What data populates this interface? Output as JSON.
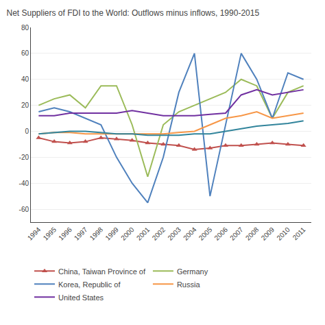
{
  "chart_data": {
    "type": "line",
    "title": "Net Suppliers of FDI to the World: Outflows minus inflows, 1990-2015",
    "x": [
      1994,
      1995,
      1996,
      1997,
      1998,
      1999,
      2000,
      2001,
      2002,
      2003,
      2004,
      2005,
      2006,
      2007,
      2008,
      2009,
      2010,
      2011
    ],
    "series": [
      {
        "name": "China, Taiwan Province of",
        "color": "#c0504d",
        "marker": "triangle-up",
        "values": [
          -5,
          -8,
          -9,
          -8,
          -5,
          -6,
          -7,
          -9,
          -10,
          -11,
          -14,
          -13,
          -11,
          -11,
          -10,
          -9,
          -10,
          -11
        ]
      },
      {
        "name": "Germany",
        "color": "#9bbb59",
        "values": [
          20,
          25,
          28,
          18,
          35,
          35,
          5,
          -35,
          5,
          15,
          20,
          25,
          30,
          40,
          35,
          10,
          30,
          35
        ]
      },
      {
        "name": "Korea, Republic of",
        "color": "#4f81bd",
        "values": [
          15,
          18,
          15,
          10,
          5,
          -20,
          -40,
          -55,
          -20,
          30,
          60,
          -50,
          5,
          60,
          40,
          10,
          45,
          40
        ]
      },
      {
        "name": "Russia",
        "color": "#f79646",
        "values": [
          -2,
          -1,
          -1,
          -2,
          -2,
          -2,
          -2,
          -2,
          -2,
          -1,
          0,
          5,
          10,
          12,
          15,
          10,
          12,
          14
        ]
      },
      {
        "name": "United States",
        "color": "#7030a0",
        "values": [
          12,
          12,
          14,
          14,
          14,
          14,
          16,
          14,
          12,
          12,
          12,
          13,
          14,
          28,
          32,
          28,
          30,
          32
        ]
      },
      {
        "color": "#31849b",
        "values": [
          -2,
          -1,
          0,
          0,
          -1,
          -2,
          -2,
          -3,
          -3,
          -3,
          -2,
          -2,
          0,
          2,
          4,
          5,
          6,
          8
        ]
      }
    ],
    "xlim": [
      1993.5,
      2011.5
    ],
    "xticks": [
      1994,
      1995,
      1996,
      1997,
      1998,
      1999,
      2000,
      2001,
      2002,
      2003,
      2004,
      2005,
      2006,
      2007,
      2008,
      2009,
      2010,
      2011
    ],
    "ylim": [
      -70,
      80
    ],
    "yticks": [
      -60,
      -40,
      -20,
      0,
      20,
      40,
      60,
      80
    ],
    "grid": "y",
    "legend": "bottom"
  }
}
